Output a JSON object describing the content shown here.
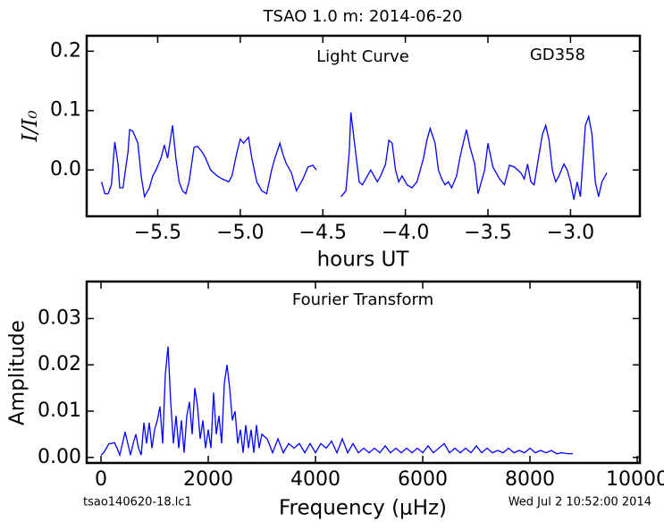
{
  "title": "TSAO 1.0 m:  2014-06-20",
  "footer_left": "tsao140620-18.lc1",
  "footer_right": "Wed Jul  2 10:52:00 2014",
  "chart_data": [
    {
      "type": "line",
      "xlabel": "hours UT",
      "ylabel": "I/I₀",
      "annotations": [
        "Light Curve",
        "GD358"
      ],
      "color": "#0000ff",
      "xlim": [
        -5.93,
        -2.58
      ],
      "ylim": [
        -0.078,
        0.226
      ],
      "xticks": [
        {
          "value": -5.5,
          "label": "−5.5"
        },
        {
          "value": -5.0,
          "label": "−5.0"
        },
        {
          "value": -4.5,
          "label": "−4.5"
        },
        {
          "value": -4.0,
          "label": "−4.0"
        },
        {
          "value": -3.5,
          "label": "−3.5"
        },
        {
          "value": -3.0,
          "label": "−3.0"
        }
      ],
      "yticks": [
        {
          "value": 0,
          "label": "0.0"
        },
        0.1,
        0.2
      ],
      "grid": false,
      "x": [
        -5.84,
        -5.82,
        -5.8,
        -5.78,
        -5.76,
        -5.74,
        -5.73,
        -5.71,
        -5.68,
        -5.67,
        -5.65,
        -5.62,
        -5.6,
        -5.58,
        -5.55,
        -5.53,
        -5.51,
        -5.48,
        -5.46,
        -5.44,
        -5.41,
        -5.39,
        -5.37,
        -5.35,
        -5.33,
        -5.31,
        -5.28,
        -5.26,
        -5.23,
        -5.21,
        -5.18,
        -5.14,
        -5.11,
        -5.07,
        -5.05,
        -5.02,
        -5.0,
        -4.98,
        -4.95,
        -4.93,
        -4.9,
        -4.87,
        -4.84,
        -4.81,
        -4.79,
        -4.76,
        -4.74,
        -4.72,
        -4.69,
        -4.66,
        -4.62,
        -4.59,
        -4.56,
        -4.54,
        -4.47,
        -4.39,
        -4.36,
        -4.34,
        -4.33,
        -4.31,
        -4.28,
        -4.26,
        -4.23,
        -4.21,
        -4.19,
        -4.17,
        -4.15,
        -4.12,
        -4.1,
        -4.08,
        -4.06,
        -4.04,
        -4.02,
        -3.99,
        -3.96,
        -3.93,
        -3.91,
        -3.89,
        -3.87,
        -3.85,
        -3.82,
        -3.8,
        -3.78,
        -3.76,
        -3.74,
        -3.72,
        -3.69,
        -3.67,
        -3.65,
        -3.63,
        -3.61,
        -3.58,
        -3.56,
        -3.54,
        -3.52,
        -3.5,
        -3.47,
        -3.45,
        -3.43,
        -3.4,
        -3.37,
        -3.34,
        -3.3,
        -3.28,
        -3.26,
        -3.24,
        -3.22,
        -3.2,
        -3.17,
        -3.15,
        -3.13,
        -3.11,
        -3.09,
        -3.07,
        -3.04,
        -3.02,
        -3.0,
        -2.98,
        -2.96,
        -2.94,
        -2.91,
        -2.89,
        -2.87,
        -2.85,
        -2.83,
        -2.81,
        -2.78
      ],
      "values": [
        -0.02,
        -0.04,
        -0.04,
        -0.025,
        0.047,
        0.01,
        -0.03,
        -0.03,
        0.03,
        0.068,
        0.065,
        0.045,
        -0.01,
        -0.045,
        -0.03,
        -0.01,
        0.0,
        0.02,
        0.042,
        0.02,
        0.075,
        0.02,
        -0.02,
        -0.035,
        -0.04,
        -0.02,
        0.038,
        0.04,
        0.03,
        0.02,
        0.0,
        -0.01,
        -0.015,
        -0.02,
        -0.01,
        0.03,
        0.052,
        0.045,
        0.055,
        0.02,
        -0.02,
        -0.035,
        -0.04,
        0.0,
        0.02,
        0.045,
        0.025,
        0.01,
        -0.005,
        -0.035,
        -0.015,
        0.005,
        0.008,
        0.0,
        null,
        -0.045,
        -0.035,
        0.03,
        0.097,
        0.05,
        -0.02,
        -0.025,
        -0.01,
        0.0,
        -0.01,
        -0.02,
        -0.01,
        0.01,
        0.05,
        0.045,
        0.0,
        -0.02,
        -0.01,
        -0.025,
        -0.03,
        -0.02,
        0.0,
        0.02,
        0.05,
        0.07,
        0.045,
        0.0,
        -0.015,
        -0.025,
        -0.02,
        -0.03,
        -0.01,
        0.02,
        0.045,
        0.068,
        0.04,
        0.01,
        -0.04,
        -0.02,
        0.0,
        0.045,
        0.005,
        -0.005,
        -0.015,
        -0.025,
        0.008,
        0.005,
        -0.005,
        -0.015,
        0.01,
        -0.02,
        -0.025,
        0.01,
        0.06,
        0.075,
        0.05,
        0.0,
        -0.02,
        -0.01,
        0.01,
        0.0,
        -0.02,
        -0.05,
        -0.02,
        -0.045,
        0.075,
        0.09,
        0.06,
        -0.02,
        -0.045,
        -0.02,
        -0.005
      ]
    },
    {
      "type": "line",
      "xlabel": "Frequency (μHz)",
      "ylabel": "Amplitude",
      "annotations": [
        "Fourier Transform"
      ],
      "color": "#0000ff",
      "xlim": [
        -267,
        10050
      ],
      "ylim": [
        -0.0012,
        0.038
      ],
      "xticks": [
        0,
        2000,
        4000,
        6000,
        8000,
        10000
      ],
      "yticks": [
        {
          "value": 0,
          "label": "0.00"
        },
        {
          "value": 0.01,
          "label": "0.01"
        },
        {
          "value": 0.02,
          "label": "0.02"
        },
        {
          "value": 0.03,
          "label": "0.03"
        }
      ],
      "grid": false,
      "x": [
        0,
        50,
        100,
        150,
        200,
        250,
        300,
        350,
        400,
        450,
        500,
        550,
        600,
        650,
        700,
        750,
        800,
        850,
        900,
        950,
        1000,
        1050,
        1100,
        1150,
        1200,
        1250,
        1300,
        1350,
        1400,
        1450,
        1500,
        1550,
        1600,
        1650,
        1700,
        1750,
        1800,
        1850,
        1900,
        1950,
        2000,
        2050,
        2100,
        2150,
        2200,
        2250,
        2300,
        2350,
        2400,
        2450,
        2500,
        2550,
        2600,
        2650,
        2700,
        2750,
        2800,
        2850,
        2900,
        2950,
        3000,
        3100,
        3200,
        3300,
        3400,
        3500,
        3600,
        3700,
        3800,
        3900,
        4000,
        4100,
        4200,
        4300,
        4400,
        4500,
        4600,
        4700,
        4800,
        4900,
        5000,
        5100,
        5200,
        5300,
        5400,
        5500,
        5600,
        5700,
        5800,
        5900,
        6000,
        6100,
        6200,
        6300,
        6400,
        6500,
        6600,
        6700,
        6800,
        6900,
        7000,
        7100,
        7200,
        7300,
        7400,
        7500,
        7600,
        7700,
        7800,
        7900,
        8000,
        8100,
        8200,
        8300,
        8400,
        8500,
        8600,
        8700,
        8800
      ],
      "values": [
        0.0005,
        0.001,
        0.002,
        0.003,
        0.003,
        0.0032,
        0.002,
        0.0005,
        0.003,
        0.0055,
        0.003,
        0.0005,
        0.003,
        0.005,
        0.002,
        0.0005,
        0.0075,
        0.003,
        0.0075,
        0.002,
        0.006,
        0.008,
        0.011,
        0.003,
        0.018,
        0.024,
        0.012,
        0.003,
        0.009,
        0.002,
        0.008,
        0.001,
        0.009,
        0.012,
        0.005,
        0.015,
        0.011,
        0.004,
        0.008,
        0.002,
        0.006,
        0.002,
        0.014,
        0.005,
        0.009,
        0.003,
        0.016,
        0.02,
        0.015,
        0.008,
        0.01,
        0.003,
        0.006,
        0.001,
        0.007,
        0.002,
        0.006,
        0.001,
        0.007,
        0.002,
        0.005,
        0.004,
        0.001,
        0.004,
        0.001,
        0.003,
        0.002,
        0.003,
        0.001,
        0.003,
        0.001,
        0.003,
        0.002,
        0.0035,
        0.001,
        0.004,
        0.001,
        0.003,
        0.001,
        0.002,
        0.001,
        0.002,
        0.001,
        0.0025,
        0.001,
        0.002,
        0.001,
        0.002,
        0.001,
        0.002,
        0.001,
        0.0025,
        0.001,
        0.002,
        0.003,
        0.001,
        0.002,
        0.001,
        0.002,
        0.001,
        0.0025,
        0.001,
        0.002,
        0.001,
        0.0015,
        0.001,
        0.002,
        0.001,
        0.0015,
        0.001,
        0.002,
        0.001,
        0.0015,
        0.001,
        0.0015,
        0.0008,
        0.001,
        0.0008,
        0.0008
      ]
    }
  ]
}
